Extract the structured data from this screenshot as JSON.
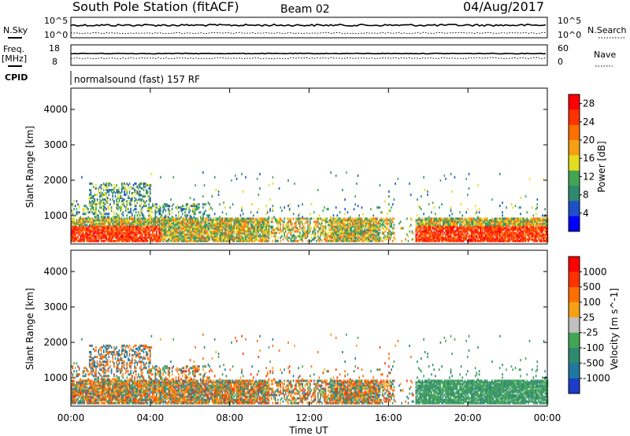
{
  "header": {
    "station": "South Pole Station (fitACF)",
    "beam": "Beam 02",
    "date": "04/Aug/2017"
  },
  "top_panels": {
    "nsky_label": "N.Sky",
    "nsky_hi": "10^5",
    "nsky_lo": "10^0",
    "nsearch_label": "N.Search",
    "nsearch_hi": "10^5",
    "nsearch_lo": "10^0",
    "freq_label": "Freq.",
    "freq_unit": "[MHz]",
    "freq_hi": "18",
    "freq_lo": "8",
    "nave_label": "Nave",
    "nave_hi": "60",
    "nave_lo": "0",
    "cpid_label": "CPID",
    "cpid_text": "normalsound (fast) 157 RF"
  },
  "chart_data": [
    {
      "type": "heatmap",
      "name": "power",
      "ylabel": "Slant Range [km]",
      "yticks": [
        1000,
        2000,
        3000,
        4000
      ],
      "ylim": [
        200,
        4600
      ],
      "xticks": [
        "00:00",
        "04:00",
        "08:00",
        "12:00",
        "16:00",
        "20:00",
        "00:00"
      ],
      "xlim": [
        0,
        24
      ],
      "colorbar": {
        "label": "Power [dB]",
        "ticks": [
          4,
          8,
          12,
          16,
          20,
          24,
          28
        ],
        "range": [
          0,
          30
        ],
        "colors": [
          "#0000ff",
          "#1e50c8",
          "#2e8a6e",
          "#43a553",
          "#e6dc1e",
          "#f5a014",
          "#ff6e00",
          "#ff3200",
          "#ff0000"
        ]
      }
    },
    {
      "type": "heatmap",
      "name": "velocity",
      "ylabel": "Slant Range [km]",
      "yticks": [
        1000,
        2000,
        3000,
        4000
      ],
      "ylim": [
        200,
        4600
      ],
      "xticks": [
        "00:00",
        "04:00",
        "08:00",
        "12:00",
        "16:00",
        "20:00",
        "00:00"
      ],
      "xlim": [
        0,
        24
      ],
      "xlabel": "Time UT",
      "colorbar": {
        "label": "Velocity [m s^-1]",
        "ticks": [
          "1000",
          "500",
          "100",
          "25",
          "-25",
          "-100",
          "-500",
          "-1000"
        ],
        "colors": [
          "#1e3cc8",
          "#1e78a0",
          "#2e8a6e",
          "#43a553",
          "#c0c0c0",
          "#f5a014",
          "#ff6e00",
          "#ff3200",
          "#ff0000"
        ]
      }
    }
  ]
}
